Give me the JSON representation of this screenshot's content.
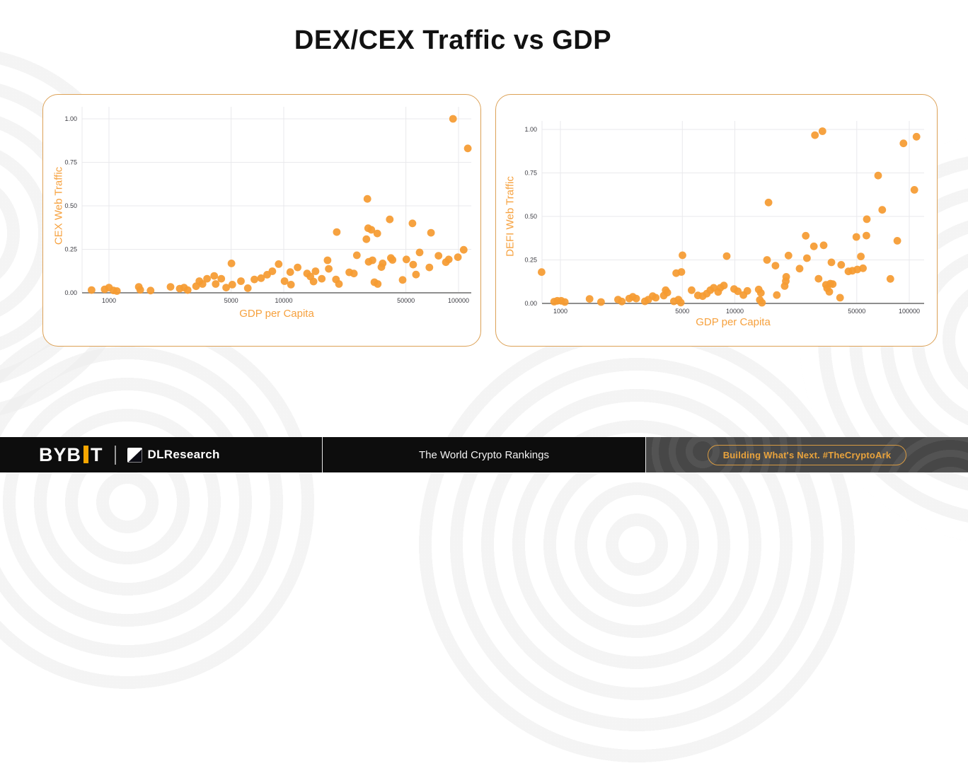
{
  "title": "DEX/CEX Traffic vs GDP",
  "footer": {
    "logo_bybit_prefix": "BYB",
    "logo_bybit_suffix": "T",
    "logo_research": "DLResearch",
    "center_text": "The World Crypto Rankings",
    "badge": "Building What's Next. #TheCryptoArk"
  },
  "colors": {
    "accent": "#F7A600",
    "dot": "#F59B31",
    "card_border": "#DCA156",
    "grid": "#E9E9EC",
    "axis": "#8F8F8F",
    "axis_title": "#F6A13E",
    "tick": "#3C3C43",
    "badge": "#E9A33C",
    "title": "#121212"
  },
  "chart_data": [
    {
      "type": "scatter",
      "title": "",
      "ylabel": "CEX Web Traffic",
      "xlabel": "GDP per Capita",
      "x_scale": "log",
      "xlim": [
        700,
        120000
      ],
      "ylim": [
        0,
        1
      ],
      "xticks": [
        1000,
        5000,
        10000,
        50000,
        100000
      ],
      "yticks": [
        0,
        0.25,
        0.5,
        0.75,
        1
      ],
      "grid": true,
      "legend": false,
      "points": [
        [
          795,
          0.016
        ],
        [
          945,
          0.02
        ],
        [
          1000,
          0.03
        ],
        [
          1060,
          0.014
        ],
        [
          1110,
          0.01
        ],
        [
          1480,
          0.034
        ],
        [
          1510,
          0.017
        ],
        [
          1730,
          0.013
        ],
        [
          2250,
          0.034
        ],
        [
          2540,
          0.024
        ],
        [
          2690,
          0.03
        ],
        [
          2820,
          0.016
        ],
        [
          3150,
          0.038
        ],
        [
          3290,
          0.067
        ],
        [
          3430,
          0.051
        ],
        [
          3640,
          0.081
        ],
        [
          4000,
          0.097
        ],
        [
          4080,
          0.051
        ],
        [
          4390,
          0.081
        ],
        [
          4680,
          0.03
        ],
        [
          5020,
          0.169
        ],
        [
          5080,
          0.047
        ],
        [
          5690,
          0.067
        ],
        [
          6230,
          0.027
        ],
        [
          6790,
          0.077
        ],
        [
          7420,
          0.084
        ],
        [
          8030,
          0.104
        ],
        [
          8610,
          0.124
        ],
        [
          9350,
          0.165
        ],
        [
          10100,
          0.067
        ],
        [
          10900,
          0.119
        ],
        [
          11000,
          0.047
        ],
        [
          12000,
          0.146
        ],
        [
          13600,
          0.111
        ],
        [
          14200,
          0.094
        ],
        [
          14800,
          0.065
        ],
        [
          15200,
          0.124
        ],
        [
          16500,
          0.081
        ],
        [
          17800,
          0.187
        ],
        [
          18100,
          0.138
        ],
        [
          19900,
          0.077
        ],
        [
          20100,
          0.349
        ],
        [
          20700,
          0.051
        ],
        [
          23700,
          0.118
        ],
        [
          25200,
          0.111
        ],
        [
          26200,
          0.216
        ],
        [
          29700,
          0.308
        ],
        [
          30100,
          0.54
        ],
        [
          30400,
          0.371
        ],
        [
          30600,
          0.178
        ],
        [
          31700,
          0.362
        ],
        [
          32200,
          0.187
        ],
        [
          33000,
          0.061
        ],
        [
          34300,
          0.341
        ],
        [
          34500,
          0.051
        ],
        [
          36200,
          0.148
        ],
        [
          36800,
          0.169
        ],
        [
          40400,
          0.422
        ],
        [
          41000,
          0.2
        ],
        [
          41900,
          0.189
        ],
        [
          47900,
          0.074
        ],
        [
          50300,
          0.192
        ],
        [
          54500,
          0.399
        ],
        [
          55000,
          0.162
        ],
        [
          57100,
          0.105
        ],
        [
          59900,
          0.232
        ],
        [
          68100,
          0.146
        ],
        [
          69600,
          0.345
        ],
        [
          76800,
          0.213
        ],
        [
          84600,
          0.176
        ],
        [
          87900,
          0.192
        ],
        [
          93000,
          1.0
        ],
        [
          99200,
          0.205
        ],
        [
          107000,
          0.247
        ],
        [
          113000,
          0.83
        ]
      ]
    },
    {
      "type": "scatter",
      "title": "",
      "ylabel": "DEFI Web Traffic",
      "xlabel": "GDP per Capita",
      "x_scale": "log",
      "xlim": [
        700,
        120000
      ],
      "ylim": [
        0,
        1
      ],
      "xticks": [
        1000,
        5000,
        10000,
        50000,
        100000
      ],
      "yticks": [
        0,
        0.25,
        0.5,
        0.75,
        1
      ],
      "grid": true,
      "legend": false,
      "points": [
        [
          780,
          0.18
        ],
        [
          920,
          0.01
        ],
        [
          960,
          0.015
        ],
        [
          1010,
          0.015
        ],
        [
          1060,
          0.008
        ],
        [
          1470,
          0.026
        ],
        [
          1710,
          0.008
        ],
        [
          2140,
          0.022
        ],
        [
          2250,
          0.011
        ],
        [
          2480,
          0.028
        ],
        [
          2600,
          0.038
        ],
        [
          2720,
          0.028
        ],
        [
          3050,
          0.012
        ],
        [
          3190,
          0.022
        ],
        [
          3380,
          0.042
        ],
        [
          3520,
          0.033
        ],
        [
          3910,
          0.045
        ],
        [
          4010,
          0.076
        ],
        [
          4100,
          0.062
        ],
        [
          4470,
          0.012
        ],
        [
          4610,
          0.174
        ],
        [
          4750,
          0.022
        ],
        [
          4900,
          0.005
        ],
        [
          4940,
          0.181
        ],
        [
          5010,
          0.277
        ],
        [
          5650,
          0.076
        ],
        [
          6140,
          0.046
        ],
        [
          6540,
          0.042
        ],
        [
          6900,
          0.056
        ],
        [
          7230,
          0.076
        ],
        [
          7560,
          0.09
        ],
        [
          8020,
          0.066
        ],
        [
          8260,
          0.09
        ],
        [
          8650,
          0.103
        ],
        [
          8980,
          0.272
        ],
        [
          9900,
          0.083
        ],
        [
          10400,
          0.07
        ],
        [
          11200,
          0.048
        ],
        [
          11800,
          0.072
        ],
        [
          13700,
          0.08
        ],
        [
          13900,
          0.02
        ],
        [
          14100,
          0.06
        ],
        [
          14300,
          0.004
        ],
        [
          15300,
          0.25
        ],
        [
          15600,
          0.58
        ],
        [
          17100,
          0.217
        ],
        [
          17400,
          0.048
        ],
        [
          19300,
          0.1
        ],
        [
          19600,
          0.128
        ],
        [
          19700,
          0.153
        ],
        [
          20300,
          0.275
        ],
        [
          23500,
          0.2
        ],
        [
          25500,
          0.389
        ],
        [
          25900,
          0.26
        ],
        [
          28400,
          0.328
        ],
        [
          28800,
          0.967
        ],
        [
          30200,
          0.142
        ],
        [
          31800,
          0.99
        ],
        [
          32300,
          0.334
        ],
        [
          33300,
          0.107
        ],
        [
          33800,
          0.087
        ],
        [
          34800,
          0.067
        ],
        [
          35300,
          0.114
        ],
        [
          35800,
          0.236
        ],
        [
          36400,
          0.111
        ],
        [
          40100,
          0.033
        ],
        [
          40700,
          0.222
        ],
        [
          44800,
          0.184
        ],
        [
          47200,
          0.188
        ],
        [
          49700,
          0.382
        ],
        [
          50400,
          0.195
        ],
        [
          52800,
          0.27
        ],
        [
          54300,
          0.202
        ],
        [
          56800,
          0.39
        ],
        [
          57100,
          0.484
        ],
        [
          66300,
          0.735
        ],
        [
          70000,
          0.538
        ],
        [
          77900,
          0.141
        ],
        [
          85400,
          0.36
        ],
        [
          92600,
          0.92
        ],
        [
          107000,
          0.653
        ],
        [
          110000,
          0.958
        ]
      ]
    }
  ]
}
